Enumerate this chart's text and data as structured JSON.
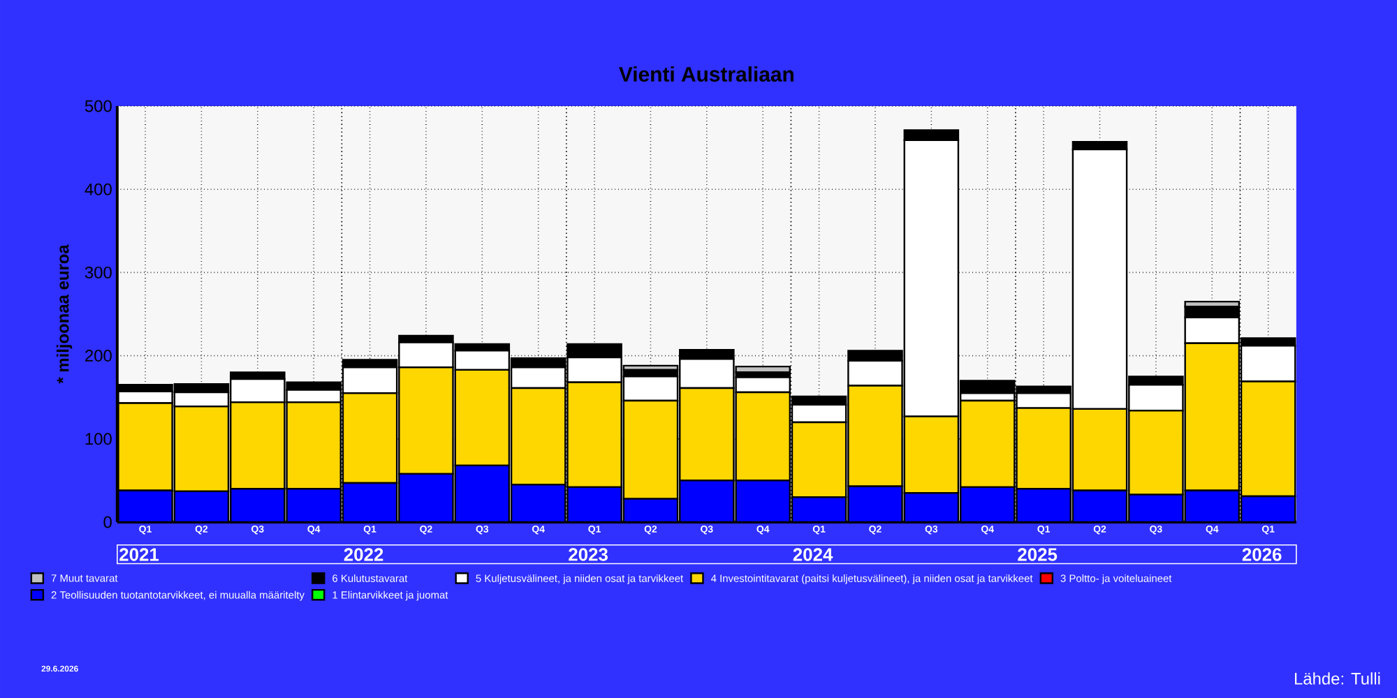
{
  "chart_data": {
    "type": "bar",
    "title": "Vienti Australiaan",
    "ylabel": "* miljoonaa euroa",
    "categories": [
      "Q1",
      "Q2",
      "Q3",
      "Q4",
      "Q1",
      "Q2",
      "Q3",
      "Q4",
      "Q1",
      "Q2",
      "Q3",
      "Q4",
      "Q1",
      "Q2",
      "Q3",
      "Q4",
      "Q1",
      "Q2",
      "Q3",
      "Q4",
      "Q1"
    ],
    "stacked": true,
    "ylim": [
      0,
      500
    ],
    "yticks": [
      0,
      100,
      200,
      300,
      400,
      500
    ],
    "grid": true,
    "legend": "bottom",
    "series": [
      {
        "name": "1 Elintarvikkeet ja juomat",
        "color": "#00ff00",
        "values": [
          0,
          0,
          0,
          0,
          0,
          0,
          0,
          0,
          0,
          0,
          0,
          0,
          0,
          0,
          0,
          0,
          0,
          0,
          0,
          0,
          0
        ]
      },
      {
        "name": "2 Teollisuuden tuotantotarvikkeet, ei muualla määritelty",
        "color": "#0000ff",
        "values": [
          38,
          37,
          40,
          40,
          47,
          58,
          68,
          45,
          42,
          28,
          50,
          50,
          30,
          43,
          35,
          42,
          40,
          38,
          33,
          38,
          31
        ]
      },
      {
        "name": "3 Poltto- ja voiteluaineet",
        "color": "#ff0000",
        "values": [
          0,
          0,
          0,
          0,
          0,
          0,
          0,
          0,
          0,
          0,
          0,
          0,
          0,
          0,
          0,
          0,
          0,
          0,
          0,
          0,
          0
        ]
      },
      {
        "name": "4 Investointitavarat (paitsi kuljetusvälineet), ja niiden osat ja tarvikkeet",
        "color": "#ffd700",
        "values": [
          105,
          102,
          104,
          104,
          108,
          128,
          115,
          116,
          126,
          118,
          111,
          106,
          90,
          121,
          92,
          104,
          97,
          98,
          101,
          177,
          138
        ]
      },
      {
        "name": "5 Kuljetusvälineet, ja niiden osat ja tarvikkeet",
        "color": "#ffffff",
        "values": [
          14,
          17,
          28,
          15,
          31,
          30,
          23,
          25,
          30,
          29,
          35,
          18,
          21,
          30,
          332,
          9,
          18,
          312,
          31,
          31,
          43
        ]
      },
      {
        "name": "6 Kulutustavarat",
        "color": "#000000",
        "values": [
          8,
          10,
          8,
          9,
          9,
          8,
          8,
          11,
          16,
          8,
          11,
          6,
          10,
          12,
          12,
          15,
          8,
          9,
          10,
          13,
          9
        ]
      },
      {
        "name": "7 Muut tavarat",
        "color": "#c0c0c0",
        "values": [
          0,
          0,
          0,
          0,
          0,
          0,
          0,
          0,
          0,
          5,
          0,
          7,
          0,
          0,
          0,
          0,
          0,
          0,
          0,
          6,
          0
        ]
      }
    ],
    "annotations": [
      "2021",
      "2022",
      "2023",
      "2024",
      "2025",
      "2026",
      "29.6.2026",
      "Lähde: Tulli"
    ]
  }
}
